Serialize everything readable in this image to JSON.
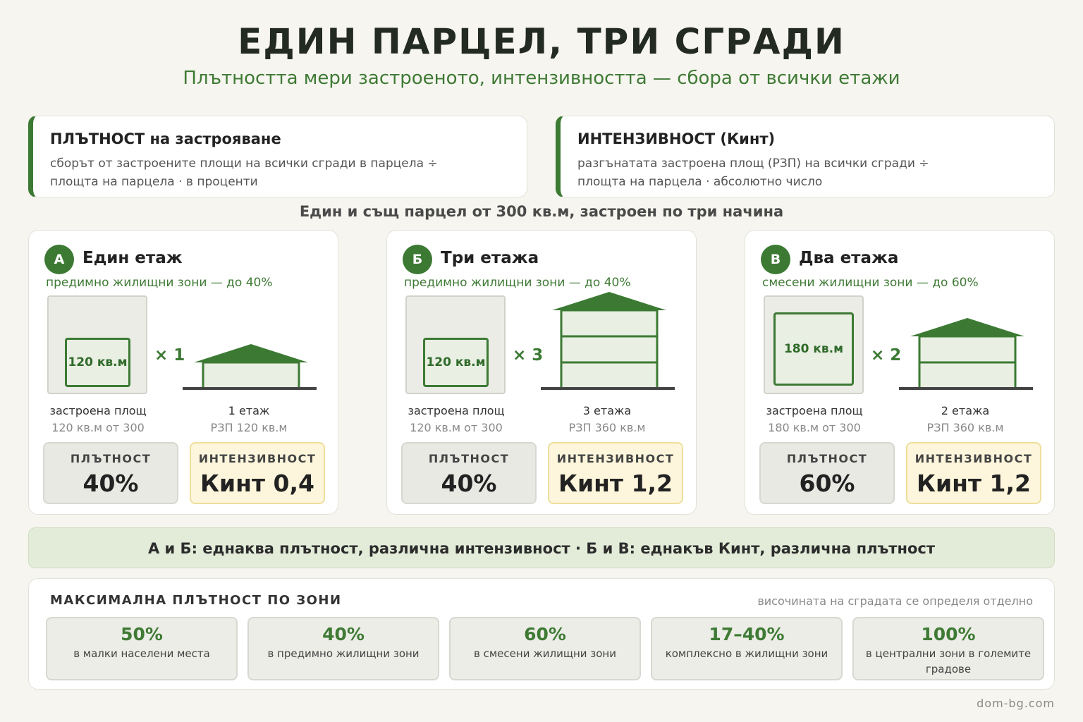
{
  "header": {
    "title": "ЕДИН ПАРЦЕЛ, ТРИ СГРАДИ",
    "subtitle": "Плътността мери застроеното, интензивността — сбора от всички етажи"
  },
  "definitions": {
    "density": {
      "title": "ПЛЪТНОСТ на застрояване",
      "line1": "сборът от застроените площи на всички сгради в парцела ÷",
      "line2": "площта на парцела · в проценти"
    },
    "intensity": {
      "title": "ИНТЕНЗИВНОСТ (Кинт)",
      "line1": "разгънатата застроена площ (РЗП) на всички сгради ÷",
      "line2": "площта на парцела · абсолютно число"
    }
  },
  "caption": "Един и същ парцел от 300 кв.м, застроен по три начина",
  "scenarios": [
    {
      "badge": "А",
      "title": "Един етаж",
      "zone": "предимно жилищни зони — до 40%",
      "footprint_label": "120 кв.м",
      "footprint_share": 0.4,
      "multiplier": "× 1",
      "floors": 1,
      "built_label": "застроена площ",
      "built_value": "120 кв.м от 300",
      "floors_label": "1 етаж",
      "rzp": "РЗП 120 кв.м",
      "density_label": "ПЛЪТНОСТ",
      "density": "40%",
      "intensity_label": "ИНТЕНЗИВНОСТ",
      "intensity": "Кинт 0,4"
    },
    {
      "badge": "Б",
      "title": "Три етажа",
      "zone": "предимно жилищни зони — до 40%",
      "footprint_label": "120 кв.м",
      "footprint_share": 0.4,
      "multiplier": "× 3",
      "floors": 3,
      "built_label": "застроена площ",
      "built_value": "120 кв.м от 300",
      "floors_label": "3 етажа",
      "rzp": "РЗП 360 кв.м",
      "density_label": "ПЛЪТНОСТ",
      "density": "40%",
      "intensity_label": "ИНТЕНЗИВНОСТ",
      "intensity": "Кинт 1,2"
    },
    {
      "badge": "В",
      "title": "Два етажа",
      "zone": "смесени жилищни зони — до 60%",
      "footprint_label": "180 кв.м",
      "footprint_share": 0.6,
      "multiplier": "× 2",
      "floors": 2,
      "built_label": "застроена площ",
      "built_value": "180 кв.м от 300",
      "floors_label": "2 етажа",
      "rzp": "РЗП 360 кв.м",
      "density_label": "ПЛЪТНОСТ",
      "density": "60%",
      "intensity_label": "ИНТЕНЗИВНОСТ",
      "intensity": "Кинт 1,2"
    }
  ],
  "comparison": "А и Б: еднаква плътност, различна интензивност · Б и В: еднакъв Кинт, различна плътност",
  "zones": {
    "heading": "МАКСИМАЛНА ПЛЪТНОСТ ПО ЗОНИ",
    "note": "височината на сградата се определя отделно",
    "items": [
      {
        "value": "50%",
        "text": "в малки населени места"
      },
      {
        "value": "40%",
        "text": "в предимно жилищни зони"
      },
      {
        "value": "60%",
        "text": "в смесени жилищни зони"
      },
      {
        "value": "17–40%",
        "text": "комплексно в жилищни зони"
      },
      {
        "value": "100%",
        "text": "в централни зони в големите градове"
      }
    ]
  },
  "footer": "dom-bg.com",
  "colors": {
    "accent": "#3c7a34",
    "accent_text": "#3f7a35",
    "intensity_bg": "#fdf6dc",
    "density_bg": "#e8e9e3"
  }
}
